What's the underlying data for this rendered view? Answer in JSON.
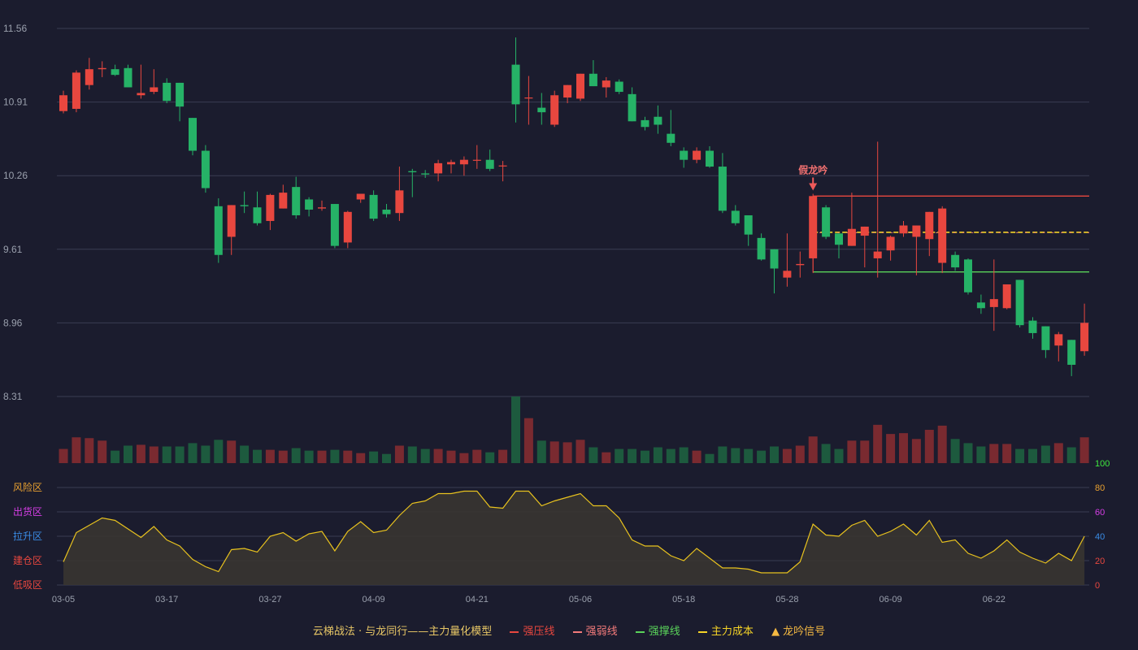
{
  "colors": {
    "background": "#1b1c2e",
    "up": "#e8473f",
    "down": "#26b267",
    "resistance": "#e8473f",
    "weak": "#f47b7b",
    "support": "#5ad35a",
    "cost": "#f5d327",
    "grid": "#3a3c52",
    "axis_text": "#9aa0ad",
    "osc_line": "#e8c21e"
  },
  "chart_data": {
    "type": "candlestick",
    "price_ticks": [
      "11.56",
      "10.91",
      "10.26",
      "9.61",
      "8.96",
      "8.31"
    ],
    "price_range": [
      8.31,
      11.56
    ],
    "x_tick_labels": [
      {
        "index": 0,
        "label": "03-05"
      },
      {
        "index": 8,
        "label": "03-17"
      },
      {
        "index": 16,
        "label": "03-27"
      },
      {
        "index": 24,
        "label": "04-09"
      },
      {
        "index": 32,
        "label": "04-21"
      },
      {
        "index": 40,
        "label": "05-06"
      },
      {
        "index": 48,
        "label": "05-18"
      },
      {
        "index": 56,
        "label": "05-28"
      },
      {
        "index": 64,
        "label": "06-09"
      },
      {
        "index": 72,
        "label": "06-22"
      }
    ],
    "ohlc": [
      [
        10.83,
        10.97,
        10.81,
        11.01
      ],
      [
        10.85,
        11.17,
        10.82,
        11.19
      ],
      [
        11.06,
        11.2,
        11.02,
        11.3
      ],
      [
        11.2,
        11.21,
        11.13,
        11.27
      ],
      [
        11.2,
        11.15,
        11.14,
        11.24
      ],
      [
        11.21,
        11.04,
        11.04,
        11.24
      ],
      [
        10.97,
        10.99,
        10.94,
        11.24
      ],
      [
        11.0,
        11.04,
        10.98,
        11.2
      ],
      [
        11.08,
        10.92,
        10.9,
        11.12
      ],
      [
        11.08,
        10.87,
        10.74,
        11.08
      ],
      [
        10.77,
        10.48,
        10.44,
        10.77
      ],
      [
        10.48,
        10.15,
        10.11,
        10.53
      ],
      [
        9.99,
        9.56,
        9.49,
        10.06
      ],
      [
        9.72,
        10.0,
        9.56,
        10.0
      ],
      [
        10.0,
        9.99,
        9.93,
        10.12
      ],
      [
        9.98,
        9.84,
        9.82,
        10.12
      ],
      [
        9.86,
        10.09,
        9.78,
        10.1
      ],
      [
        9.97,
        10.11,
        9.97,
        10.18
      ],
      [
        10.16,
        9.91,
        9.88,
        10.25
      ],
      [
        10.05,
        9.96,
        9.9,
        10.07
      ],
      [
        9.97,
        9.98,
        9.95,
        10.04
      ],
      [
        10.01,
        9.64,
        9.62,
        10.01
      ],
      [
        9.67,
        9.94,
        9.62,
        9.95
      ],
      [
        10.05,
        10.1,
        10.02,
        10.1
      ],
      [
        10.09,
        9.88,
        9.86,
        10.13
      ],
      [
        9.96,
        9.92,
        9.89,
        10.01
      ],
      [
        9.93,
        10.13,
        9.86,
        10.34
      ],
      [
        10.3,
        10.29,
        10.07,
        10.32
      ],
      [
        10.28,
        10.27,
        10.24,
        10.31
      ],
      [
        10.28,
        10.37,
        10.21,
        10.4
      ],
      [
        10.36,
        10.38,
        10.28,
        10.4
      ],
      [
        10.36,
        10.4,
        10.26,
        10.43
      ],
      [
        10.4,
        10.4,
        10.32,
        10.53
      ],
      [
        10.4,
        10.32,
        10.3,
        10.49
      ],
      [
        10.35,
        10.35,
        10.21,
        10.39
      ],
      [
        11.24,
        10.89,
        10.73,
        11.48
      ],
      [
        10.95,
        10.95,
        10.71,
        11.14
      ],
      [
        10.86,
        10.82,
        10.71,
        10.99
      ],
      [
        10.71,
        10.97,
        10.69,
        11.01
      ],
      [
        10.95,
        11.06,
        10.9,
        11.06
      ],
      [
        10.94,
        11.16,
        10.92,
        11.16
      ],
      [
        11.16,
        11.05,
        11.05,
        11.28
      ],
      [
        11.04,
        11.1,
        10.95,
        11.13
      ],
      [
        11.09,
        11.0,
        10.98,
        11.11
      ],
      [
        10.98,
        10.74,
        10.74,
        11.04
      ],
      [
        10.75,
        10.69,
        10.66,
        10.78
      ],
      [
        10.78,
        10.71,
        10.63,
        10.88
      ],
      [
        10.63,
        10.55,
        10.52,
        10.84
      ],
      [
        10.48,
        10.4,
        10.33,
        10.51
      ],
      [
        10.4,
        10.48,
        10.37,
        10.51
      ],
      [
        10.48,
        10.34,
        10.33,
        10.52
      ],
      [
        10.34,
        9.95,
        9.93,
        10.46
      ],
      [
        9.95,
        9.84,
        9.82,
        10.0
      ],
      [
        9.91,
        9.74,
        9.64,
        9.91
      ],
      [
        9.71,
        9.52,
        9.51,
        9.75
      ],
      [
        9.61,
        9.44,
        9.22,
        9.61
      ],
      [
        9.36,
        9.42,
        9.28,
        9.75
      ],
      [
        9.47,
        9.48,
        9.36,
        9.59
      ],
      [
        9.53,
        10.08,
        9.4,
        10.1
      ],
      [
        9.98,
        9.72,
        9.7,
        10.0
      ],
      [
        9.75,
        9.65,
        9.53,
        9.75
      ],
      [
        9.64,
        9.79,
        9.64,
        10.11
      ],
      [
        9.73,
        9.81,
        9.45,
        9.81
      ],
      [
        9.53,
        9.59,
        9.36,
        10.56
      ],
      [
        9.6,
        9.72,
        9.51,
        9.73
      ],
      [
        9.75,
        9.82,
        9.72,
        9.86
      ],
      [
        9.72,
        9.82,
        9.38,
        9.82
      ],
      [
        9.7,
        9.94,
        9.55,
        9.94
      ],
      [
        9.49,
        9.97,
        9.4,
        9.99
      ],
      [
        9.56,
        9.45,
        9.42,
        9.59
      ],
      [
        9.52,
        9.23,
        9.21,
        9.53
      ],
      [
        9.14,
        9.09,
        9.04,
        9.21
      ],
      [
        9.1,
        9.17,
        8.89,
        9.52
      ],
      [
        9.09,
        9.3,
        9.08,
        9.3
      ],
      [
        9.34,
        8.94,
        8.92,
        9.34
      ],
      [
        8.98,
        8.87,
        8.82,
        9.01
      ],
      [
        8.93,
        8.72,
        8.65,
        8.93
      ],
      [
        8.76,
        8.86,
        8.62,
        8.88
      ],
      [
        8.81,
        8.59,
        8.49,
        8.81
      ],
      [
        8.71,
        8.96,
        8.67,
        9.13
      ]
    ],
    "volume": [
      17,
      31,
      30,
      27,
      15,
      21,
      22,
      20,
      20,
      20,
      24,
      21,
      28,
      27,
      21,
      16,
      16,
      15,
      18,
      15,
      15,
      16,
      15,
      12,
      14,
      11,
      21,
      20,
      17,
      17,
      15,
      12,
      16,
      13,
      16,
      80,
      54,
      27,
      26,
      25,
      28,
      19,
      13,
      17,
      17,
      15,
      19,
      17,
      19,
      15,
      11,
      20,
      18,
      17,
      15,
      20,
      17,
      21,
      32,
      23,
      17,
      27,
      27,
      46,
      35,
      36,
      29,
      40,
      45,
      29,
      24,
      20,
      23,
      23,
      17,
      17,
      21,
      24,
      19,
      31
    ],
    "oscillator": {
      "levels": [
        "100",
        "80",
        "60",
        "40",
        "20",
        "0"
      ],
      "zones": [
        "风险区",
        "出货区",
        "拉升区",
        "建仓区",
        "低吸区"
      ],
      "values": [
        19,
        43,
        49,
        55,
        53,
        46,
        39,
        48,
        37,
        32,
        21,
        15,
        11,
        29,
        30,
        27,
        40,
        43,
        36,
        42,
        44,
        28,
        44,
        52,
        43,
        45,
        57,
        67,
        69,
        75,
        75,
        77,
        77,
        64,
        63,
        77,
        77,
        65,
        69,
        72,
        75,
        65,
        65,
        55,
        37,
        32,
        32,
        24,
        20,
        30,
        22,
        14,
        14,
        13,
        10,
        10,
        10,
        19,
        50,
        41,
        40,
        49,
        53,
        40,
        44,
        50,
        41,
        53,
        35,
        37,
        26,
        22,
        28,
        37,
        27,
        22,
        18,
        26,
        20,
        40
      ]
    },
    "lines": {
      "resistance": 10.08,
      "cost": 9.76,
      "support": 9.41,
      "line_start_index": 58
    },
    "signal": {
      "index": 58,
      "label": "假龙吟"
    }
  },
  "legend": {
    "title": "云梯战法 · 与龙同行——主力量化模型",
    "items": [
      {
        "key": "strong_resistance",
        "label": "强压线",
        "style": "solid",
        "color": "#e8473f"
      },
      {
        "key": "strong_weak",
        "label": "强弱线",
        "style": "dashed",
        "color": "#f47b7b"
      },
      {
        "key": "strong_support",
        "label": "强撑线",
        "style": "solid",
        "color": "#5ad35a"
      },
      {
        "key": "main_cost",
        "label": "主力成本",
        "style": "dashed",
        "color": "#f5d327"
      },
      {
        "key": "dragon_signal",
        "label": "龙吟信号",
        "style": "triangle",
        "color": "#f5b942"
      }
    ]
  }
}
